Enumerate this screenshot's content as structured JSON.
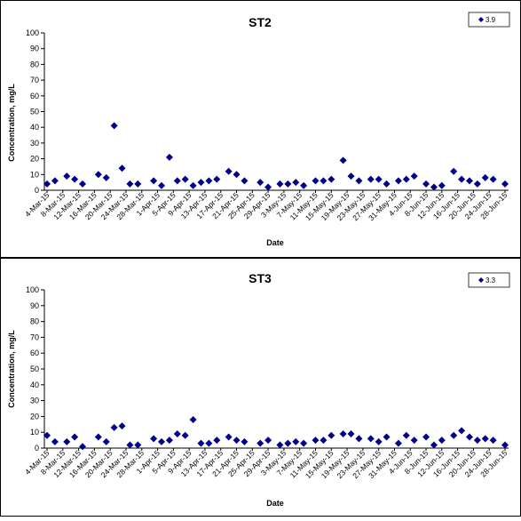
{
  "chart_data": [
    {
      "type": "scatter",
      "title": "ST2",
      "xlabel": "Date",
      "ylabel": "Concentration, mg/L",
      "ylim": [
        0,
        100
      ],
      "yticks": [
        0,
        10,
        20,
        30,
        40,
        50,
        60,
        70,
        80,
        90,
        100
      ],
      "x_tick_labels": [
        "4-Mar-15",
        "8-Mar-15",
        "12-Mar-15",
        "16-Mar-15",
        "20-Mar-15",
        "24-Mar-15",
        "28-Mar-15",
        "1-Apr-15",
        "5-Apr-15",
        "9-Apr-15",
        "13-Apr-15",
        "17-Apr-15",
        "21-Apr-15",
        "25-Apr-15",
        "29-Apr-15",
        "3-May-15",
        "7-May-15",
        "11-May-15",
        "15-May-15",
        "19-May-15",
        "23-May-15",
        "27-May-15",
        "31-May-15",
        "4-Jun-15",
        "8-Jun-15",
        "12-Jun-15",
        "16-Jun-15",
        "20-Jun-15",
        "24-Jun-15",
        "28-Jun-15"
      ],
      "grid": false,
      "legend_position": "top-right",
      "color": "#00008B",
      "series": [
        {
          "name": "3.9",
          "x": [
            "4-Mar-15",
            "6-Mar-15",
            "9-Mar-15",
            "11-Mar-15",
            "13-Mar-15",
            "17-Mar-15",
            "19-Mar-15",
            "21-Mar-15",
            "23-Mar-15",
            "25-Mar-15",
            "27-Mar-15",
            "31-Mar-15",
            "2-Apr-15",
            "4-Apr-15",
            "6-Apr-15",
            "8-Apr-15",
            "10-Apr-15",
            "12-Apr-15",
            "14-Apr-15",
            "16-Apr-15",
            "19-Apr-15",
            "21-Apr-15",
            "23-Apr-15",
            "27-Apr-15",
            "29-Apr-15",
            "2-May-15",
            "4-May-15",
            "6-May-15",
            "8-May-15",
            "11-May-15",
            "13-May-15",
            "15-May-15",
            "18-May-15",
            "20-May-15",
            "22-May-15",
            "25-May-15",
            "27-May-15",
            "29-May-15",
            "1-Jun-15",
            "3-Jun-15",
            "5-Jun-15",
            "8-Jun-15",
            "10-Jun-15",
            "12-Jun-15",
            "15-Jun-15",
            "17-Jun-15",
            "19-Jun-15",
            "21-Jun-15",
            "23-Jun-15",
            "25-Jun-15",
            "28-Jun-15"
          ],
          "y": [
            4,
            6,
            9,
            7,
            4,
            10,
            8,
            41,
            14,
            4,
            4,
            6,
            3,
            21,
            6,
            7,
            3,
            5,
            6,
            7,
            12,
            10,
            6,
            5,
            2,
            4,
            4,
            5,
            3,
            6,
            6,
            7,
            19,
            9,
            6,
            7,
            7,
            4,
            6,
            7,
            9,
            4,
            2,
            3,
            12,
            7,
            6,
            4,
            8,
            7,
            4
          ]
        }
      ]
    },
    {
      "type": "scatter",
      "title": "ST3",
      "xlabel": "Date",
      "ylabel": "Concentration, mg/L",
      "ylim": [
        0,
        100
      ],
      "yticks": [
        0,
        10,
        20,
        30,
        40,
        50,
        60,
        70,
        80,
        90,
        100
      ],
      "x_tick_labels": [
        "4-Mar-15",
        "8-Mar-15",
        "12-Mar-15",
        "16-Mar-15",
        "20-Mar-15",
        "24-Mar-15",
        "28-Mar-15",
        "1-Apr-15",
        "5-Apr-15",
        "9-Apr-15",
        "13-Apr-15",
        "17-Apr-15",
        "21-Apr-15",
        "25-Apr-15",
        "29-Apr-15",
        "3-May-15",
        "7-May-15",
        "11-May-15",
        "15-May-15",
        "19-May-15",
        "23-May-15",
        "27-May-15",
        "31-May-15",
        "4-Jun-15",
        "8-Jun-15",
        "12-Jun-15",
        "16-Jun-15",
        "20-Jun-15",
        "24-Jun-15",
        "28-Jun-15"
      ],
      "grid": false,
      "legend_position": "top-right",
      "color": "#00008B",
      "series": [
        {
          "name": "3.3",
          "x": [
            "4-Mar-15",
            "6-Mar-15",
            "9-Mar-15",
            "11-Mar-15",
            "13-Mar-15",
            "17-Mar-15",
            "19-Mar-15",
            "21-Mar-15",
            "23-Mar-15",
            "25-Mar-15",
            "27-Mar-15",
            "31-Mar-15",
            "2-Apr-15",
            "4-Apr-15",
            "6-Apr-15",
            "8-Apr-15",
            "10-Apr-15",
            "12-Apr-15",
            "14-Apr-15",
            "16-Apr-15",
            "19-Apr-15",
            "21-Apr-15",
            "23-Apr-15",
            "27-Apr-15",
            "29-Apr-15",
            "2-May-15",
            "4-May-15",
            "6-May-15",
            "8-May-15",
            "11-May-15",
            "13-May-15",
            "15-May-15",
            "18-May-15",
            "20-May-15",
            "22-May-15",
            "25-May-15",
            "27-May-15",
            "29-May-15",
            "1-Jun-15",
            "3-Jun-15",
            "5-Jun-15",
            "8-Jun-15",
            "10-Jun-15",
            "12-Jun-15",
            "15-Jun-15",
            "17-Jun-15",
            "19-Jun-15",
            "21-Jun-15",
            "23-Jun-15",
            "25-Jun-15",
            "28-Jun-15"
          ],
          "y": [
            8,
            4,
            4,
            7,
            1,
            7,
            4,
            13,
            14,
            2,
            2,
            6,
            4,
            5,
            9,
            8,
            18,
            3,
            3,
            5,
            7,
            5,
            4,
            3,
            5,
            2,
            3,
            4,
            3,
            5,
            5,
            8,
            9,
            9,
            6,
            6,
            4,
            7,
            3,
            8,
            5,
            7,
            2,
            5,
            8,
            11,
            7,
            5,
            6,
            5,
            2
          ]
        }
      ]
    }
  ]
}
